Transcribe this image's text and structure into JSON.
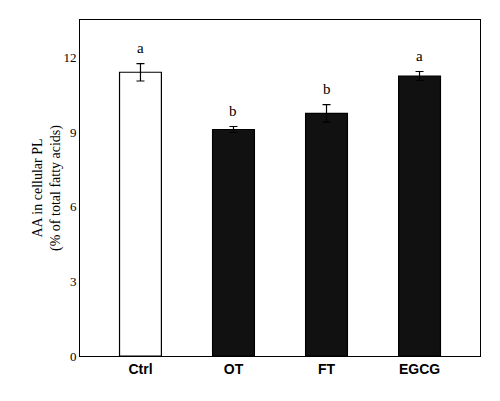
{
  "chart_data": {
    "type": "bar",
    "categories": [
      "Ctrl",
      "OT",
      "FT",
      "EGCG"
    ],
    "values": [
      11.4,
      9.1,
      9.75,
      11.25
    ],
    "errors": [
      0.35,
      0.12,
      0.35,
      0.18
    ],
    "colors": [
      "#ffffff",
      "#111111",
      "#111111",
      "#111111"
    ],
    "annotations": [
      "a",
      "b",
      "b",
      "a"
    ],
    "ylabel": "AA in cellular PL\n(% of total fatty acids)",
    "ylim": [
      0,
      13.5
    ],
    "yticks": [
      0,
      3,
      6,
      9,
      12
    ],
    "grid": false
  }
}
